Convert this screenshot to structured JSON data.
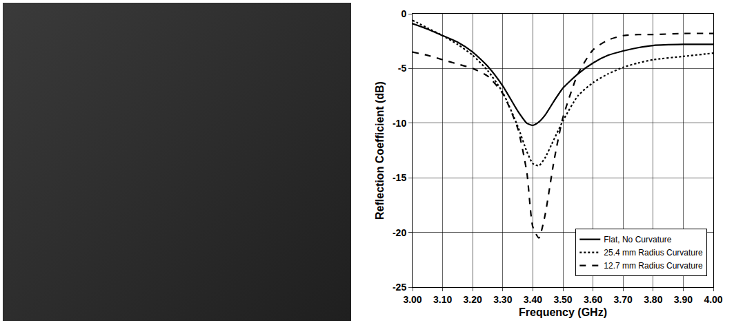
{
  "chart_data": {
    "type": "line",
    "x_label": "Frequency (GHz)",
    "y_label": "Reflection Coefficient (dB)",
    "x": [
      3.0,
      3.05,
      3.1,
      3.15,
      3.2,
      3.25,
      3.3,
      3.35,
      3.38,
      3.4,
      3.42,
      3.44,
      3.47,
      3.5,
      3.55,
      3.6,
      3.65,
      3.7,
      3.75,
      3.8,
      3.9,
      4.0
    ],
    "series": [
      {
        "name": "Flat, No Curvature",
        "color": "#000000",
        "line_style": "solid",
        "values": [
          -0.9,
          -1.4,
          -2.0,
          -2.6,
          -3.5,
          -4.8,
          -6.6,
          -8.9,
          -10.0,
          -10.2,
          -9.9,
          -9.3,
          -8.0,
          -6.8,
          -5.5,
          -4.5,
          -3.8,
          -3.4,
          -3.1,
          -2.9,
          -2.8,
          -2.8
        ]
      },
      {
        "name": "25.4 mm Radius Curvature",
        "color": "#000000",
        "line_style": "dot",
        "values": [
          -0.6,
          -1.3,
          -2.0,
          -2.8,
          -3.8,
          -5.2,
          -7.2,
          -10.3,
          -12.6,
          -13.7,
          -13.9,
          -13.2,
          -11.5,
          -9.8,
          -7.5,
          -6.3,
          -5.5,
          -4.9,
          -4.5,
          -4.2,
          -3.9,
          -3.6
        ]
      },
      {
        "name": "12.7 mm Radius Curvature",
        "color": "#000000",
        "line_style": "dash",
        "values": [
          -3.5,
          -3.8,
          -4.2,
          -4.6,
          -5.0,
          -5.7,
          -7.3,
          -10.5,
          -14.5,
          -19.5,
          -20.5,
          -18.5,
          -13.5,
          -9.5,
          -5.5,
          -3.3,
          -2.4,
          -2.0,
          -1.9,
          -1.9,
          -1.8,
          -1.8
        ]
      }
    ],
    "xlim": [
      3.0,
      4.0
    ],
    "xticks": [
      {
        "value": 3.0,
        "label": "3.00"
      },
      {
        "value": 3.1,
        "label": "3.10"
      },
      {
        "value": 3.2,
        "label": "3.20"
      },
      {
        "value": 3.3,
        "label": "3.30"
      },
      {
        "value": 3.4,
        "label": "3.40"
      },
      {
        "value": 3.5,
        "label": "3.50"
      },
      {
        "value": 3.6,
        "label": "3.60"
      },
      {
        "value": 3.7,
        "label": "3.70"
      },
      {
        "value": 3.8,
        "label": "3.80"
      },
      {
        "value": 3.9,
        "label": "3.90"
      },
      {
        "value": 4.0,
        "label": "4.00"
      }
    ],
    "ylim": [
      -25,
      0
    ],
    "yticks": [
      -25,
      -20,
      -15,
      -10,
      -5,
      0
    ],
    "grid": true,
    "legend": "lower right"
  }
}
